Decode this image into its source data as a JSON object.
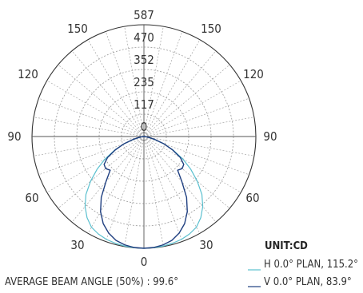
{
  "chart_data": {
    "type": "polar",
    "unit_label": "UNIT:CD",
    "radial_ticks": [
      "0",
      "117",
      "235",
      "352",
      "470",
      "587"
    ],
    "radial_max": 587,
    "angle_ticks": {
      "top_left": "150",
      "top_right": "150",
      "upper_left": "120",
      "upper_right": "120",
      "left": "90",
      "right": "90",
      "lower_left": "60",
      "lower_right": "60",
      "bottom_left": "30",
      "bottom_right": "30",
      "bottom": "0"
    },
    "grid": true,
    "series": [
      {
        "name": "H 0.0° PLAN, 115.2°",
        "color": "#5bc0cf",
        "angles": [
          0,
          5,
          10,
          15,
          20,
          25,
          30,
          35,
          40,
          45,
          50,
          55,
          60,
          65,
          70,
          75,
          80,
          85,
          90
        ],
        "values": [
          587,
          586,
          584,
          580,
          575,
          565,
          550,
          520,
          480,
          430,
          365,
          300,
          235,
          170,
          110,
          55,
          20,
          5,
          0
        ]
      },
      {
        "name": "V 0.0° PLAN, 83.9°",
        "color": "#1f3f80",
        "angles": [
          0,
          5,
          10,
          15,
          20,
          25,
          30,
          35,
          40,
          45,
          50,
          55,
          60,
          65,
          70,
          75,
          80,
          85,
          90
        ],
        "values": [
          587,
          585,
          578,
          565,
          540,
          505,
          455,
          390,
          310,
          250,
          262,
          255,
          220,
          165,
          110,
          60,
          25,
          8,
          0
        ]
      }
    ],
    "annotation": "AVERAGE BEAM ANGLE (50%) : 99.6°"
  }
}
